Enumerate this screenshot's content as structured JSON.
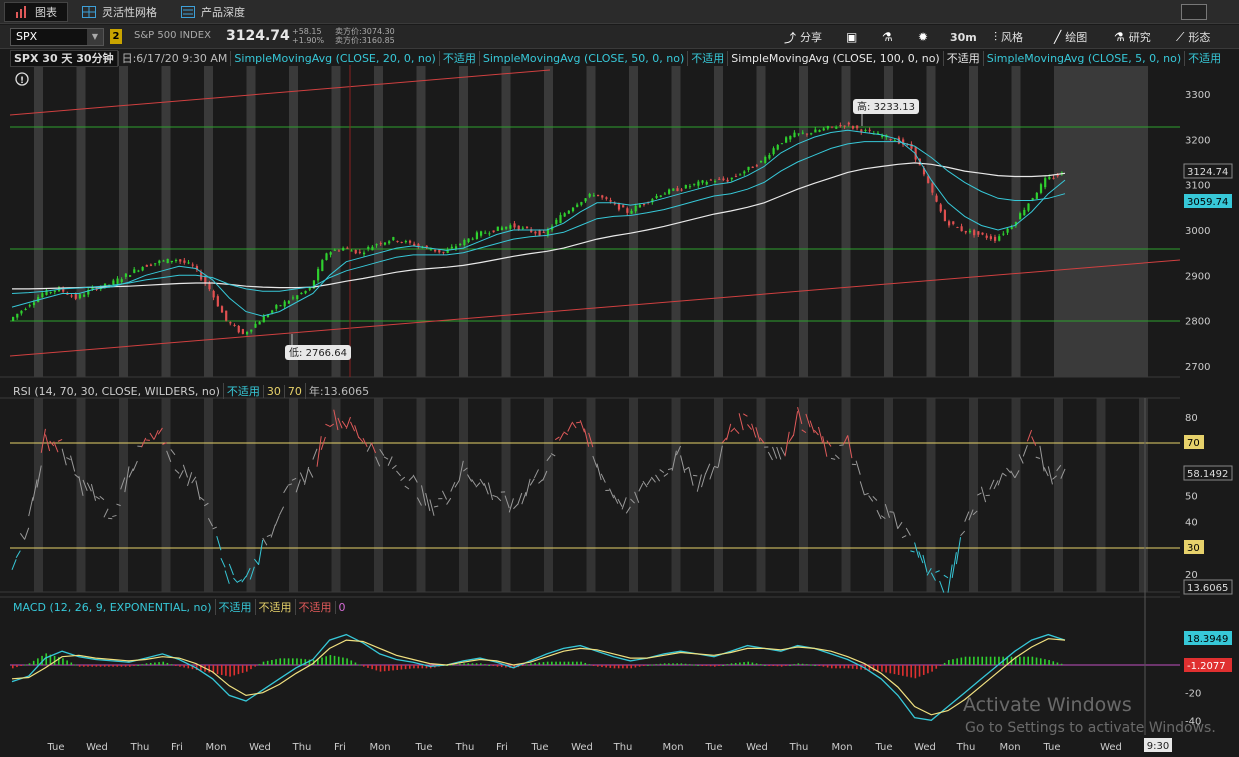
{
  "tabs": [
    {
      "label": "图表",
      "active": true
    },
    {
      "label": "灵活性网格",
      "active": false
    },
    {
      "label": "产品深度",
      "active": false
    }
  ],
  "toolbar": {
    "symbol": "SPX",
    "link_badge": "2",
    "index_name": "S&P 500 INDEX",
    "last_price": "3124.74",
    "change_abs": "+58.15",
    "change_pct": "+1.90%",
    "bid": "卖方价:3074.30",
    "ask": "卖方价:3160.85",
    "buttons": [
      {
        "label": "分享",
        "icon": "share-icon"
      },
      {
        "label": "",
        "icon": "screenshot-icon"
      },
      {
        "label": "",
        "icon": "flask-icon"
      },
      {
        "label": "",
        "icon": "gear-icon"
      },
      {
        "label": "30m",
        "icon": ""
      },
      {
        "label": "风格",
        "icon": "style-icon"
      },
      {
        "label": "绘图",
        "icon": "draw-icon"
      },
      {
        "label": "研究",
        "icon": "study-icon"
      },
      {
        "label": "形态",
        "icon": "pattern-icon"
      }
    ]
  },
  "studies_bar": {
    "title": "SPX 30 天 30分钟",
    "date": "日:6/17/20 9:30 AM",
    "items": [
      {
        "label": "SimpleMovingAvg (CLOSE, 20, 0, no)",
        "value": "不适用",
        "color": "#37c8d8"
      },
      {
        "label": "SimpleMovingAvg (CLOSE, 50, 0, no)",
        "value": "不适用",
        "color": "#37c8d8"
      },
      {
        "label": "SimpleMovingAvg (CLOSE, 100, 0, no)",
        "value": "不适用",
        "color": "#e8e8e8"
      },
      {
        "label": "SimpleMovingAvg (CLOSE, 5, 0, no)",
        "value": "不适用",
        "color": "#37c8d8"
      }
    ]
  },
  "rsi_bar": {
    "label": "RSI (14, 70, 30, CLOSE, WILDERS, no)",
    "value": "不适用",
    "ob": "30",
    "os": "70",
    "extra": "年:13.6065"
  },
  "macd_bar": {
    "label": "MACD (12, 26, 9, EXPONENTIAL, no)",
    "v1": "不适用",
    "v2": "不适用",
    "v3": "不适用",
    "v4": "0"
  },
  "chart_data": {
    "type": "candlestick",
    "price_axis": {
      "ticks": [
        "3300",
        "3200",
        "3100",
        "3000",
        "2900",
        "2800",
        "2700"
      ],
      "last": "3124.74",
      "sma_label": "3059.74"
    },
    "high_label": "高: 3233.13",
    "low_label": "低: 2766.64",
    "x_ticks": [
      "Tue",
      "Wed",
      "Thu",
      "Fri",
      "Mon",
      "Wed",
      "Thu",
      "Fri",
      "Mon",
      "Tue",
      "Thu",
      "Fri",
      "Tue",
      "Wed",
      "Thu",
      "Mon",
      "Tue",
      "Wed",
      "Thu",
      "Mon",
      "Tue",
      "Wed",
      "Thu",
      "Mon",
      "Tue",
      "Wed"
    ],
    "time_label": "9:30",
    "price_path": [
      2800,
      2830,
      2860,
      2870,
      2850,
      2870,
      2880,
      2900,
      2920,
      2930,
      2935,
      2920,
      2870,
      2800,
      2770,
      2800,
      2830,
      2850,
      2870,
      2950,
      2960,
      2950,
      2970,
      2980,
      2970,
      2960,
      2950,
      2970,
      2990,
      3000,
      3010,
      3000,
      2990,
      3030,
      3060,
      3080,
      3060,
      3040,
      3060,
      3080,
      3090,
      3100,
      3110,
      3110,
      3130,
      3150,
      3190,
      3210,
      3215,
      3225,
      3233,
      3220,
      3210,
      3200,
      3180,
      3100,
      3020,
      3000,
      2990,
      2980,
      3010,
      3060,
      3110,
      3124
    ],
    "sma20": [
      2830,
      2840,
      2850,
      2860,
      2860,
      2870,
      2875,
      2885,
      2900,
      2910,
      2920,
      2915,
      2890,
      2850,
      2820,
      2810,
      2820,
      2840,
      2860,
      2900,
      2930,
      2940,
      2950,
      2960,
      2965,
      2960,
      2955,
      2960,
      2975,
      2990,
      3000,
      3000,
      3000,
      3015,
      3040,
      3060,
      3060,
      3055,
      3060,
      3070,
      3080,
      3090,
      3100,
      3105,
      3120,
      3140,
      3170,
      3190,
      3205,
      3215,
      3220,
      3215,
      3210,
      3200,
      3170,
      3110,
      3060,
      3030,
      3010,
      3000,
      3010,
      3040,
      3080,
      3110
    ],
    "sma50": [
      2860,
      2862,
      2865,
      2870,
      2872,
      2875,
      2878,
      2883,
      2890,
      2895,
      2900,
      2900,
      2895,
      2880,
      2870,
      2865,
      2865,
      2870,
      2875,
      2895,
      2910,
      2920,
      2930,
      2940,
      2945,
      2945,
      2945,
      2950,
      2960,
      2970,
      2980,
      2985,
      2988,
      2995,
      3010,
      3025,
      3030,
      3032,
      3038,
      3045,
      3055,
      3065,
      3075,
      3080,
      3090,
      3105,
      3130,
      3150,
      3165,
      3180,
      3190,
      3195,
      3195,
      3195,
      3185,
      3160,
      3130,
      3105,
      3085,
      3070,
      3065,
      3065,
      3070,
      3080
    ],
    "sma100": [
      2870,
      2870,
      2871,
      2872,
      2873,
      2874,
      2875,
      2876,
      2878,
      2880,
      2882,
      2883,
      2883,
      2880,
      2876,
      2874,
      2873,
      2873,
      2874,
      2880,
      2887,
      2893,
      2900,
      2907,
      2912,
      2915,
      2918,
      2922,
      2928,
      2935,
      2942,
      2948,
      2953,
      2960,
      2970,
      2980,
      2987,
      2993,
      3000,
      3008,
      3017,
      3026,
      3035,
      3042,
      3050,
      3060,
      3075,
      3090,
      3103,
      3115,
      3127,
      3135,
      3140,
      3145,
      3148,
      3145,
      3138,
      3130,
      3125,
      3120,
      3118,
      3118,
      3120,
      3125
    ],
    "rsi": {
      "ticks": [
        "80",
        "70",
        "60",
        "50",
        "40",
        "30",
        "20"
      ],
      "last": "58.1492",
      "low": "13.6065",
      "levels": [
        "70",
        "30"
      ],
      "values": [
        25,
        40,
        72,
        68,
        55,
        50,
        40,
        60,
        70,
        72,
        60,
        55,
        40,
        20,
        18,
        30,
        45,
        55,
        60,
        80,
        78,
        72,
        65,
        60,
        55,
        45,
        50,
        60,
        55,
        50,
        45,
        55,
        60,
        75,
        80,
        60,
        50,
        45,
        55,
        60,
        65,
        55,
        60,
        75,
        80,
        70,
        65,
        80,
        75,
        65,
        70,
        50,
        45,
        40,
        30,
        20,
        15,
        40,
        50,
        55,
        60,
        72,
        58,
        58
      ]
    },
    "macd": {
      "ticks": [
        "20",
        "0",
        "-20",
        "-40"
      ],
      "v1": "18.3949",
      "v2": "-1.2077",
      "macd_line": [
        -12,
        -8,
        5,
        10,
        6,
        4,
        3,
        2,
        5,
        8,
        4,
        -2,
        -10,
        -22,
        -26,
        -18,
        -10,
        -2,
        4,
        18,
        22,
        16,
        8,
        4,
        2,
        -1,
        0,
        3,
        5,
        2,
        -2,
        3,
        8,
        12,
        14,
        10,
        6,
        3,
        5,
        8,
        10,
        8,
        6,
        10,
        14,
        12,
        10,
        14,
        12,
        8,
        4,
        -2,
        -10,
        -22,
        -38,
        -40,
        -30,
        -20,
        -10,
        0,
        10,
        18,
        22,
        18
      ],
      "signal_line": [
        -10,
        -9,
        -2,
        6,
        7,
        5,
        4,
        3,
        4,
        6,
        5,
        1,
        -5,
        -15,
        -22,
        -20,
        -14,
        -6,
        1,
        12,
        18,
        17,
        12,
        7,
        4,
        1,
        0,
        2,
        4,
        3,
        0,
        2,
        6,
        10,
        12,
        11,
        8,
        5,
        5,
        7,
        9,
        8,
        7,
        9,
        12,
        12,
        11,
        13,
        12,
        10,
        6,
        1,
        -6,
        -16,
        -30,
        -36,
        -33,
        -25,
        -15,
        -5,
        5,
        13,
        19,
        18
      ]
    }
  }
}
